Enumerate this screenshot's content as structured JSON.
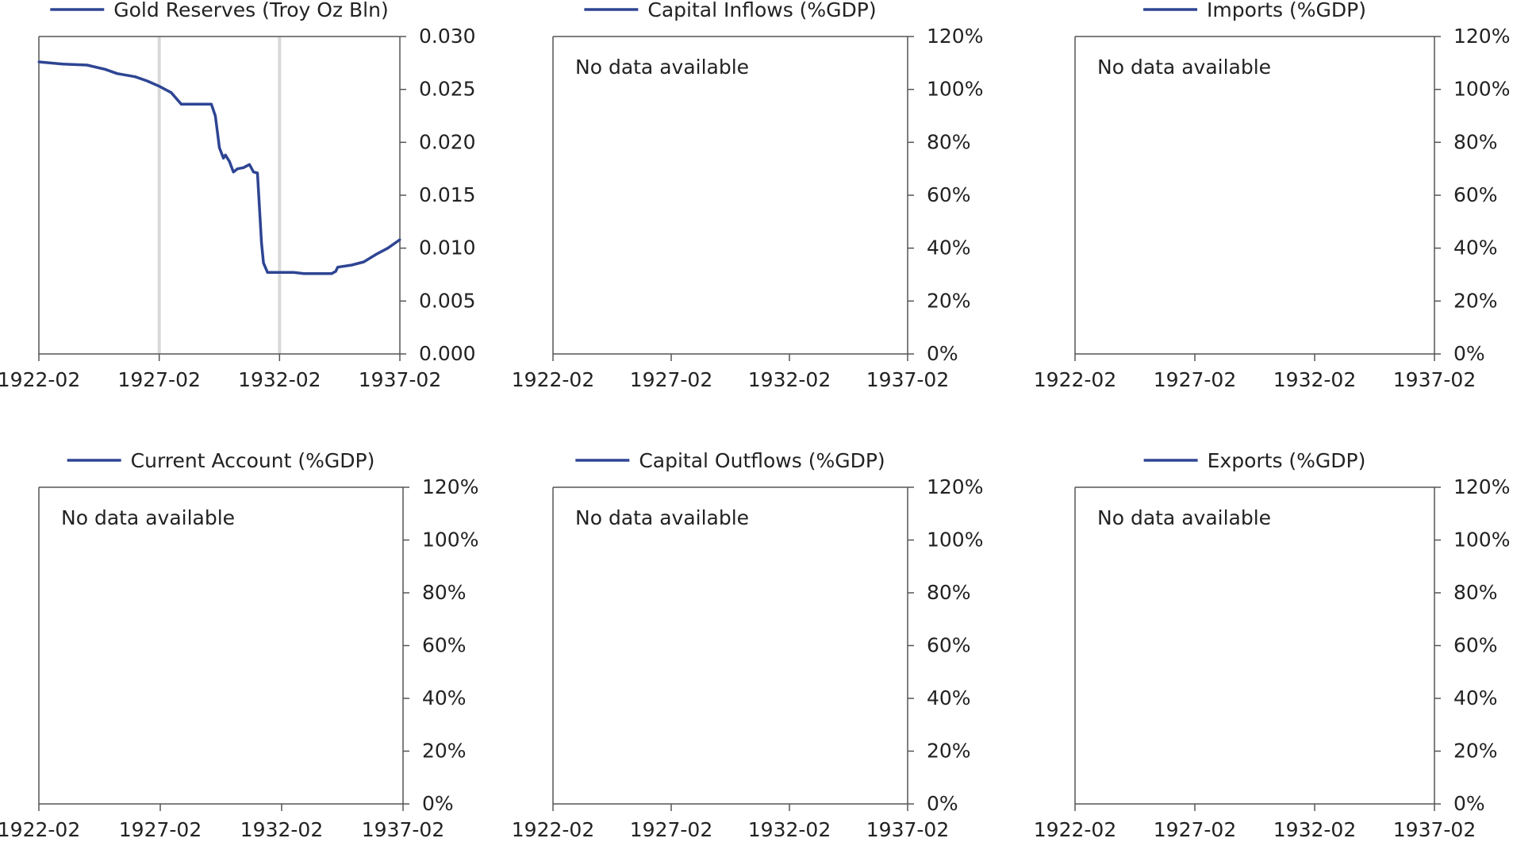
{
  "colors": {
    "series": "#2e4593",
    "axis": "#555555",
    "recession_band": "#d8d8d8",
    "text": "#222222"
  },
  "chart_data": [
    {
      "type": "line",
      "legend": "Gold Reserves (Troy Oz Bln)",
      "legend_position": "top-center",
      "y_axis_side": "right",
      "x_ticks": [
        "1922-02",
        "1927-02",
        "1932-02",
        "1937-02"
      ],
      "xlim": [
        "1922-02",
        "1937-02"
      ],
      "ylim": [
        0,
        0.03
      ],
      "y_ticks": [
        "0.030",
        "0.025",
        "0.020",
        "0.015",
        "0.010",
        "0.005",
        "0.000"
      ],
      "y_tick_values": [
        0.03,
        0.025,
        0.02,
        0.015,
        0.01,
        0.005,
        0
      ],
      "vertical_markers": [
        "1927-02",
        "1932-02"
      ],
      "empty_message": "",
      "series": [
        {
          "points": [
            {
              "x": "1922-02",
              "y": 0.0276
            },
            {
              "x": "1923-02",
              "y": 0.0274
            },
            {
              "x": "1924-02",
              "y": 0.0273
            },
            {
              "x": "1924-11",
              "y": 0.0269
            },
            {
              "x": "1925-05",
              "y": 0.0265
            },
            {
              "x": "1926-02",
              "y": 0.0262
            },
            {
              "x": "1926-08",
              "y": 0.0258
            },
            {
              "x": "1927-02",
              "y": 0.0253
            },
            {
              "x": "1927-08",
              "y": 0.0247
            },
            {
              "x": "1928-01",
              "y": 0.0236
            },
            {
              "x": "1928-06",
              "y": 0.0236
            },
            {
              "x": "1928-08",
              "y": 0.0236
            },
            {
              "x": "1929-01",
              "y": 0.0236
            },
            {
              "x": "1929-04",
              "y": 0.0236
            },
            {
              "x": "1929-06",
              "y": 0.0225
            },
            {
              "x": "1929-07",
              "y": 0.021
            },
            {
              "x": "1929-08",
              "y": 0.0195
            },
            {
              "x": "1929-10",
              "y": 0.0185
            },
            {
              "x": "1929-11",
              "y": 0.0188
            },
            {
              "x": "1930-01",
              "y": 0.0182
            },
            {
              "x": "1930-03",
              "y": 0.0172
            },
            {
              "x": "1930-05",
              "y": 0.0175
            },
            {
              "x": "1930-08",
              "y": 0.0176
            },
            {
              "x": "1930-11",
              "y": 0.0179
            },
            {
              "x": "1931-01",
              "y": 0.0172
            },
            {
              "x": "1931-03",
              "y": 0.0171
            },
            {
              "x": "1931-05",
              "y": 0.0105
            },
            {
              "x": "1931-06",
              "y": 0.0086
            },
            {
              "x": "1931-08",
              "y": 0.0077
            },
            {
              "x": "1932-02",
              "y": 0.0077
            },
            {
              "x": "1932-09",
              "y": 0.0077
            },
            {
              "x": "1933-02",
              "y": 0.0076
            },
            {
              "x": "1934-04",
              "y": 0.0076
            },
            {
              "x": "1934-06",
              "y": 0.0078
            },
            {
              "x": "1934-07",
              "y": 0.0082
            },
            {
              "x": "1935-02",
              "y": 0.0084
            },
            {
              "x": "1935-08",
              "y": 0.0087
            },
            {
              "x": "1936-02",
              "y": 0.0094
            },
            {
              "x": "1936-08",
              "y": 0.01
            },
            {
              "x": "1937-02",
              "y": 0.0108
            }
          ]
        }
      ]
    },
    {
      "type": "line",
      "legend": "Capital Inflows (%GDP)",
      "legend_position": "top-center",
      "y_axis_side": "right",
      "x_ticks": [
        "1922-02",
        "1927-02",
        "1932-02",
        "1937-02"
      ],
      "xlim": [
        "1922-02",
        "1937-02"
      ],
      "ylim": [
        0,
        120
      ],
      "y_ticks": [
        "120%",
        "100%",
        "80%",
        "60%",
        "40%",
        "20%",
        "0%"
      ],
      "y_tick_values": [
        120,
        100,
        80,
        60,
        40,
        20,
        0
      ],
      "vertical_markers": [],
      "empty_message": "No data available",
      "series": []
    },
    {
      "type": "line",
      "legend": "Imports (%GDP)",
      "legend_position": "top-center",
      "y_axis_side": "right",
      "x_ticks": [
        "1922-02",
        "1927-02",
        "1932-02",
        "1937-02"
      ],
      "xlim": [
        "1922-02",
        "1937-02"
      ],
      "ylim": [
        0,
        120
      ],
      "y_ticks": [
        "120%",
        "100%",
        "80%",
        "60%",
        "40%",
        "20%",
        "0%"
      ],
      "y_tick_values": [
        120,
        100,
        80,
        60,
        40,
        20,
        0
      ],
      "vertical_markers": [],
      "empty_message": "No data available",
      "series": []
    },
    {
      "type": "line",
      "legend": "Current Account (%GDP)",
      "legend_position": "top-center",
      "y_axis_side": "right",
      "x_ticks": [
        "1922-02",
        "1927-02",
        "1932-02",
        "1937-02"
      ],
      "xlim": [
        "1922-02",
        "1937-02"
      ],
      "ylim": [
        0,
        120
      ],
      "y_ticks": [
        "120%",
        "100%",
        "80%",
        "60%",
        "40%",
        "20%",
        "0%"
      ],
      "y_tick_values": [
        120,
        100,
        80,
        60,
        40,
        20,
        0
      ],
      "vertical_markers": [],
      "empty_message": "No data available",
      "series": []
    },
    {
      "type": "line",
      "legend": "Capital Outflows (%GDP)",
      "legend_position": "top-center",
      "y_axis_side": "right",
      "x_ticks": [
        "1922-02",
        "1927-02",
        "1932-02",
        "1937-02"
      ],
      "xlim": [
        "1922-02",
        "1937-02"
      ],
      "ylim": [
        0,
        120
      ],
      "y_ticks": [
        "120%",
        "100%",
        "80%",
        "60%",
        "40%",
        "20%",
        "0%"
      ],
      "y_tick_values": [
        120,
        100,
        80,
        60,
        40,
        20,
        0
      ],
      "vertical_markers": [],
      "empty_message": "No data available",
      "series": []
    },
    {
      "type": "line",
      "legend": "Exports (%GDP)",
      "legend_position": "top-center",
      "y_axis_side": "right",
      "x_ticks": [
        "1922-02",
        "1927-02",
        "1932-02",
        "1937-02"
      ],
      "xlim": [
        "1922-02",
        "1937-02"
      ],
      "ylim": [
        0,
        120
      ],
      "y_ticks": [
        "120%",
        "100%",
        "80%",
        "60%",
        "40%",
        "20%",
        "0%"
      ],
      "y_tick_values": [
        120,
        100,
        80,
        60,
        40,
        20,
        0
      ],
      "vertical_markers": [],
      "empty_message": "No data available",
      "series": []
    }
  ]
}
